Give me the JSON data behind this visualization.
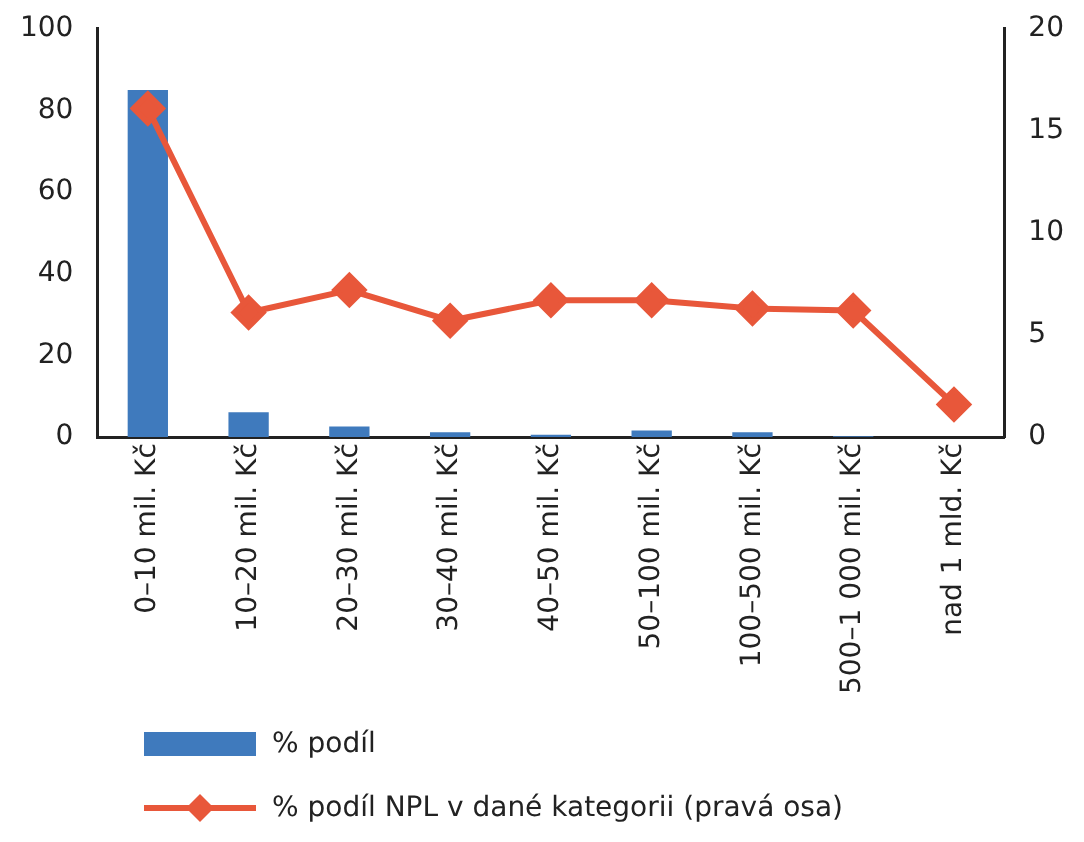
{
  "chart_data": {
    "type": "bar",
    "categories": [
      "0–10 mil. Kč",
      "10–20 mil. Kč",
      "20–30 mil. Kč",
      "30–40 mil. Kč",
      "40–50 mil. Kč",
      "50–100 mil. Kč",
      "100–500 mil. Kč",
      "500–1 000 mil. Kč",
      "nad 1 mld. Kč"
    ],
    "series": [
      {
        "name": "% podíl",
        "color": "#3f7abd",
        "values": [
          85,
          6.1,
          2.6,
          1.2,
          0.6,
          1.6,
          1.2,
          0.2,
          null
        ]
      },
      {
        "name": "% podíl NPL v dané kategorii (pravá osa)",
        "type": "line",
        "axis": "y2",
        "color": "#e8573a",
        "marker": "diamond",
        "values": [
          16.1,
          6.1,
          7.2,
          5.7,
          6.7,
          6.7,
          6.3,
          6.2,
          1.6
        ]
      }
    ],
    "ylim": [
      0,
      100
    ],
    "yticks": [
      0,
      20,
      40,
      60,
      80,
      100
    ],
    "y2lim": [
      0,
      20
    ],
    "y2ticks": [
      0,
      5,
      10,
      15,
      20
    ],
    "grid": false,
    "legend": "bottom"
  }
}
